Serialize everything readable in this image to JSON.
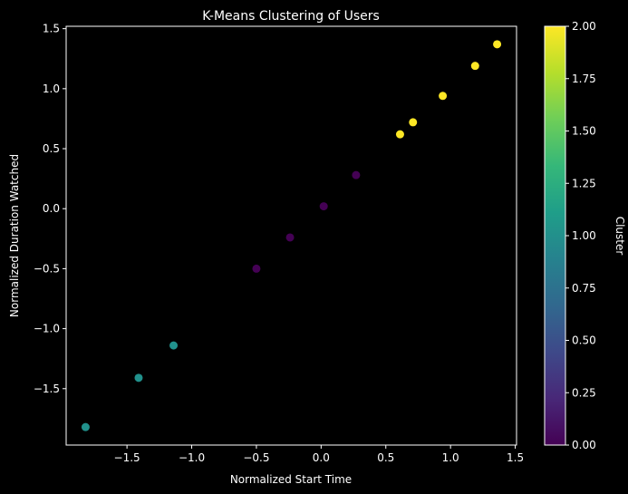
{
  "chart_data": {
    "type": "scatter",
    "title": "K-Means Clustering of Users",
    "xlabel": "Normalized Start Time",
    "ylabel": "Normalized Duration Watched",
    "xlim": [
      -1.97,
      1.51
    ],
    "ylim": [
      -1.97,
      1.52
    ],
    "xticks": [
      -1.5,
      -1.0,
      -0.5,
      0.0,
      0.5,
      1.0,
      1.5
    ],
    "xtick_labels": [
      "−1.5",
      "−1.0",
      "−0.5",
      "0.0",
      "0.5",
      "1.0",
      "1.5"
    ],
    "yticks": [
      -1.5,
      -1.0,
      -0.5,
      0.0,
      0.5,
      1.0,
      1.5
    ],
    "ytick_labels": [
      "−1.5",
      "−1.0",
      "−0.5",
      "0.0",
      "0.5",
      "1.0",
      "1.5"
    ],
    "grid": false,
    "points": [
      {
        "x": -1.82,
        "y": -1.82,
        "cluster": 1
      },
      {
        "x": -1.41,
        "y": -1.41,
        "cluster": 1
      },
      {
        "x": -1.14,
        "y": -1.14,
        "cluster": 1
      },
      {
        "x": -0.5,
        "y": -0.5,
        "cluster": 0
      },
      {
        "x": -0.24,
        "y": -0.24,
        "cluster": 0
      },
      {
        "x": 0.02,
        "y": 0.02,
        "cluster": 0
      },
      {
        "x": 0.27,
        "y": 0.28,
        "cluster": 0
      },
      {
        "x": 0.61,
        "y": 0.62,
        "cluster": 2
      },
      {
        "x": 0.71,
        "y": 0.72,
        "cluster": 2
      },
      {
        "x": 0.94,
        "y": 0.94,
        "cluster": 2
      },
      {
        "x": 1.19,
        "y": 1.19,
        "cluster": 2
      },
      {
        "x": 1.36,
        "y": 1.37,
        "cluster": 2
      }
    ],
    "cluster_colors": {
      "0": "#440154",
      "1": "#21918c",
      "2": "#fde725"
    },
    "colorbar": {
      "label": "Cluster",
      "range": [
        0,
        2
      ],
      "ticks": [
        0,
        0.25,
        0.5,
        0.75,
        1.0,
        1.25,
        1.5,
        1.75,
        2.0
      ],
      "tick_labels": [
        "0.00",
        "0.25",
        "0.50",
        "0.75",
        "1.00",
        "1.25",
        "1.50",
        "1.75",
        "2.00"
      ],
      "colormap": [
        "#440154",
        "#482878",
        "#3e4989",
        "#31688e",
        "#26828e",
        "#1f9e89",
        "#35b779",
        "#6ece58",
        "#b5de2b",
        "#fde725"
      ]
    }
  }
}
